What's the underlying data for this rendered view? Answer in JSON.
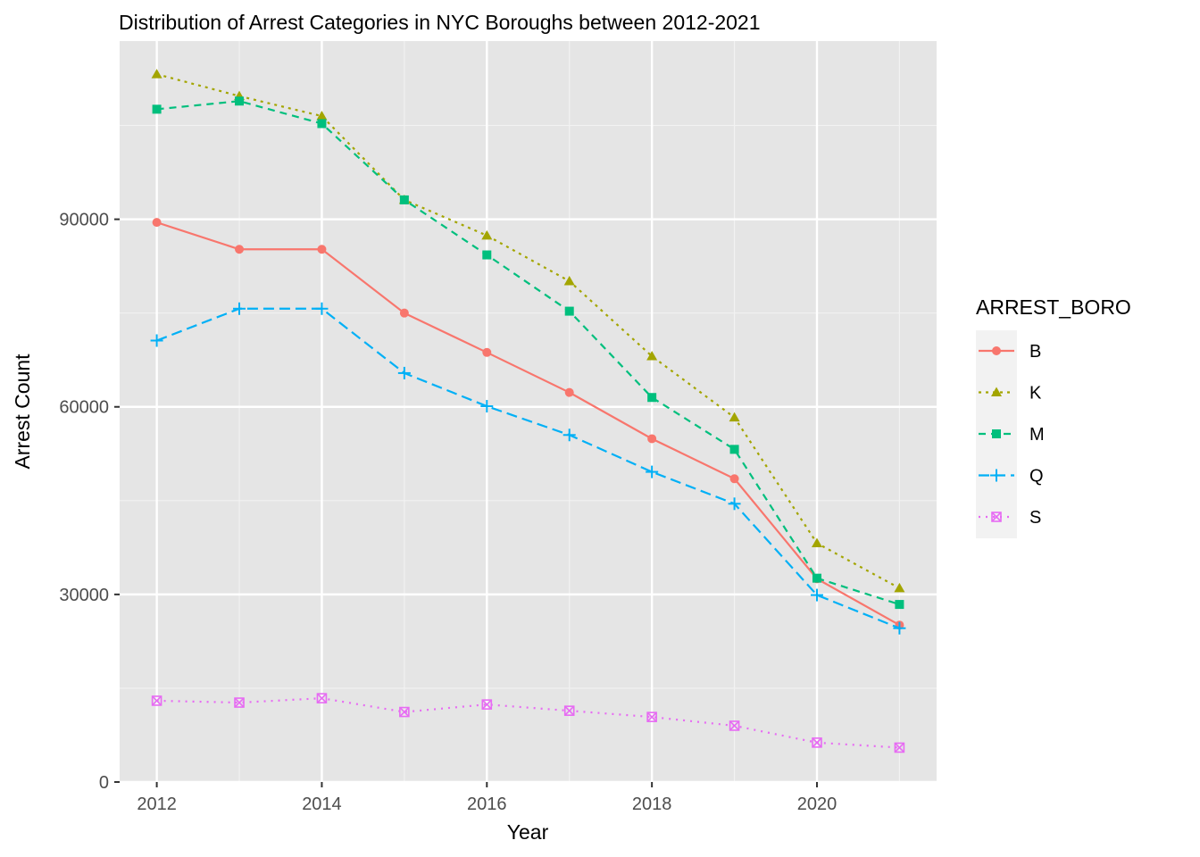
{
  "chart_data": {
    "type": "line",
    "title": "Distribution of Arrest Categories in NYC Boroughs between 2012-2021",
    "xlabel": "Year",
    "ylabel": "Arrest Count",
    "xlim": [
      2011.55,
      2021.45
    ],
    "ylim": [
      0,
      118500
    ],
    "x_ticks": [
      2012,
      2014,
      2016,
      2018,
      2020
    ],
    "y_ticks": [
      0,
      30000,
      60000,
      90000
    ],
    "x": [
      2012,
      2013,
      2014,
      2015,
      2016,
      2017,
      2018,
      2019,
      2020,
      2021
    ],
    "grid": true,
    "legend": {
      "title": "ARREST_BORO",
      "placement": "right"
    },
    "series": [
      {
        "name": "B",
        "color": "#F8766D",
        "shape": "circle",
        "dash": "solid",
        "values": [
          89500,
          85200,
          85200,
          75000,
          68700,
          62300,
          54900,
          48500,
          32500,
          25100
        ]
      },
      {
        "name": "K",
        "color": "#A3A500",
        "shape": "triangle",
        "dash": "dotted",
        "values": [
          113200,
          109700,
          106500,
          93100,
          87400,
          80100,
          68100,
          58300,
          38200,
          31000
        ]
      },
      {
        "name": "M",
        "color": "#00BF7D",
        "shape": "square",
        "dash": "dashed",
        "values": [
          107600,
          108900,
          105300,
          93100,
          84300,
          75300,
          61500,
          53200,
          32600,
          28400
        ]
      },
      {
        "name": "Q",
        "color": "#00B0F6",
        "shape": "plus",
        "dash": "longdash",
        "values": [
          70600,
          75700,
          75700,
          65400,
          60100,
          55500,
          49600,
          44500,
          29900,
          24600
        ]
      },
      {
        "name": "S",
        "color": "#E76BF3",
        "shape": "boxx",
        "dash": "dot",
        "values": [
          13000,
          12700,
          13400,
          11200,
          12400,
          11400,
          10400,
          9000,
          6300,
          5500
        ]
      }
    ]
  }
}
